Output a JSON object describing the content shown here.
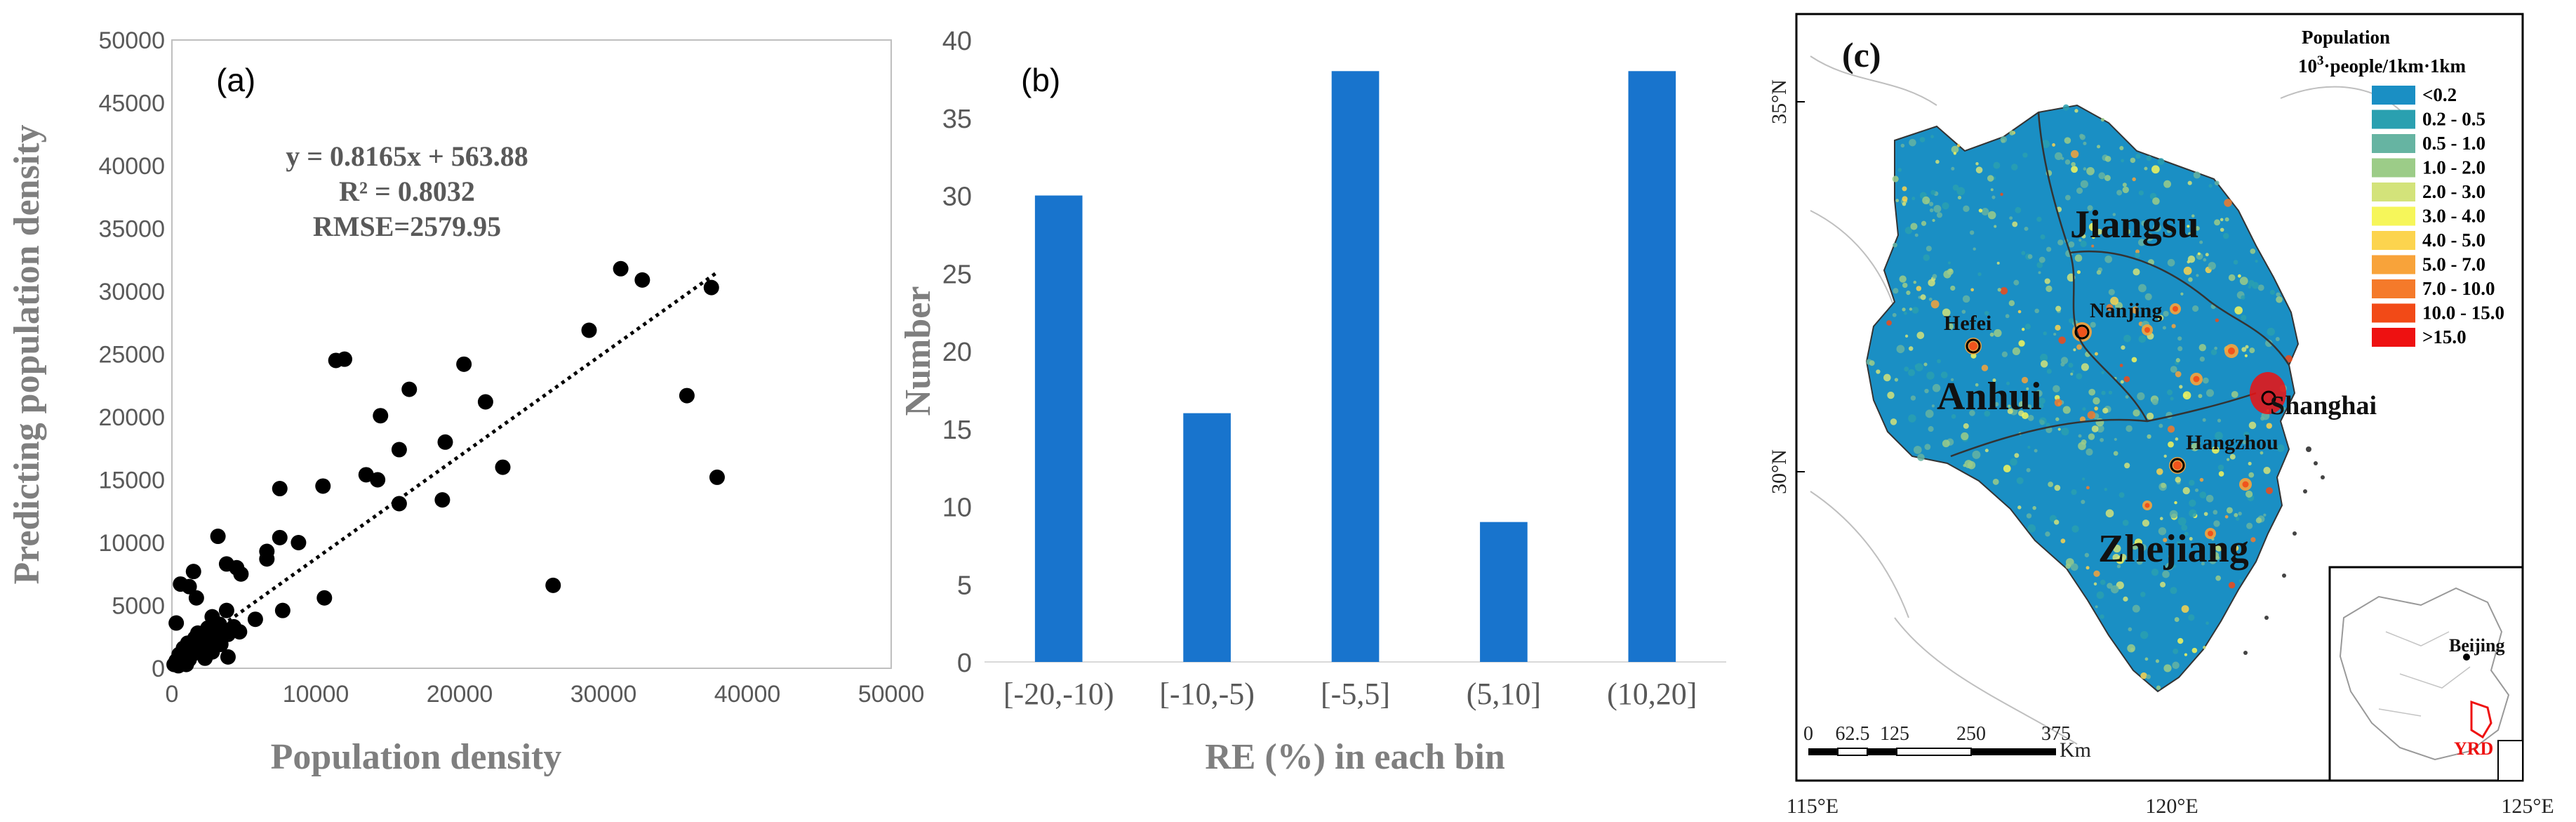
{
  "chart_data": [
    {
      "type": "scatter",
      "label": "(a)",
      "xlabel": "Population density",
      "ylabel": "Predicting population density",
      "xlim": [
        0,
        50000
      ],
      "ylim": [
        0,
        50000
      ],
      "x_ticks": [
        "0",
        "10000",
        "20000",
        "30000",
        "40000",
        "50000"
      ],
      "y_ticks": [
        "0",
        "5000",
        "10000",
        "15000",
        "20000",
        "25000",
        "30000",
        "35000",
        "40000",
        "45000",
        "50000"
      ],
      "equation": "y = 0.8165x + 563.88",
      "r2": "R² = 0.8032",
      "rmse": "RMSE=2579.95",
      "fit": {
        "slope": 0.8165,
        "intercept": 563.88,
        "x_range": [
          0,
          37800
        ]
      },
      "points": [
        [
          31200,
          31800
        ],
        [
          32700,
          30900
        ],
        [
          37500,
          30300
        ],
        [
          29000,
          26900
        ],
        [
          12000,
          24600
        ],
        [
          11400,
          24500
        ],
        [
          20300,
          24200
        ],
        [
          16500,
          22200
        ],
        [
          21800,
          21200
        ],
        [
          35800,
          21700
        ],
        [
          14500,
          20100
        ],
        [
          19000,
          18000
        ],
        [
          15800,
          17400
        ],
        [
          23000,
          16000
        ],
        [
          13500,
          15400
        ],
        [
          14300,
          15000
        ],
        [
          37900,
          15200
        ],
        [
          7500,
          14300
        ],
        [
          10500,
          14500
        ],
        [
          15800,
          13100
        ],
        [
          18800,
          13400
        ],
        [
          3200,
          10500
        ],
        [
          7500,
          10400
        ],
        [
          8800,
          10000
        ],
        [
          6600,
          9300
        ],
        [
          4500,
          8000
        ],
        [
          4800,
          7500
        ],
        [
          3800,
          8300
        ],
        [
          1500,
          7700
        ],
        [
          600,
          6700
        ],
        [
          1200,
          6500
        ],
        [
          26500,
          6600
        ],
        [
          1700,
          5600
        ],
        [
          6600,
          8700
        ],
        [
          10600,
          5600
        ],
        [
          7700,
          4600
        ],
        [
          5800,
          3900
        ],
        [
          300,
          3600
        ],
        [
          3800,
          4600
        ],
        [
          2800,
          4100
        ],
        [
          4300,
          3300
        ],
        [
          3300,
          3500
        ],
        [
          2500,
          3200
        ],
        [
          4700,
          2900
        ],
        [
          3900,
          2700
        ],
        [
          2200,
          2700
        ],
        [
          1600,
          2400
        ],
        [
          1100,
          2000
        ],
        [
          800,
          1600
        ],
        [
          500,
          1100
        ],
        [
          300,
          600
        ],
        [
          150,
          300
        ],
        [
          1900,
          1400
        ],
        [
          2600,
          1700
        ],
        [
          3100,
          2200
        ],
        [
          2000,
          1900
        ],
        [
          1400,
          1100
        ],
        [
          900,
          800
        ],
        [
          700,
          400
        ],
        [
          1200,
          700
        ],
        [
          2300,
          800
        ],
        [
          2800,
          1300
        ],
        [
          3400,
          1900
        ],
        [
          3900,
          900
        ],
        [
          1600,
          1500
        ],
        [
          450,
          200
        ],
        [
          1000,
          300
        ],
        [
          3600,
          2600
        ],
        [
          1800,
          2800
        ],
        [
          2400,
          2300
        ],
        [
          3000,
          2900
        ],
        [
          1300,
          1700
        ]
      ]
    },
    {
      "type": "bar",
      "label": "(b)",
      "categories": [
        "[-20,-10)",
        "[-10,-5)",
        "[-5,5]",
        "(5,10]",
        "(10,20]"
      ],
      "values": [
        30,
        16,
        38,
        9,
        38
      ],
      "xlabel": "RE (%) in each bin",
      "ylabel": "Number",
      "ylim": [
        0,
        40
      ],
      "y_ticks": [
        "0",
        "5",
        "10",
        "15",
        "20",
        "25",
        "30",
        "35",
        "40"
      ],
      "color": "#1874cd"
    },
    {
      "type": "map",
      "label": "(c)",
      "legend_title": "Population",
      "legend_unit_base": "10",
      "legend_unit_exp": "3",
      "legend_unit_rest": "·people/1km·1km",
      "legend": [
        {
          "label": "<0.2",
          "color": "#1a8fc4"
        },
        {
          "label": "0.2 - 0.5",
          "color": "#2aa0b0"
        },
        {
          "label": "0.5 - 1.0",
          "color": "#66b4a2"
        },
        {
          "label": "1.0 - 2.0",
          "color": "#9ccc88"
        },
        {
          "label": "2.0 - 3.0",
          "color": "#d3e37a"
        },
        {
          "label": "3.0 - 4.0",
          "color": "#f6f65a"
        },
        {
          "label": "4.0 - 5.0",
          "color": "#fcd44e"
        },
        {
          "label": "5.0 - 7.0",
          "color": "#f8a33a"
        },
        {
          "label": "7.0 - 10.0",
          "color": "#f57a2a"
        },
        {
          "label": "10.0 - 15.0",
          "color": "#f24a17"
        },
        {
          "label": ">15.0",
          "color": "#ee1111"
        }
      ],
      "provinces": [
        "Jiangsu",
        "Anhui",
        "Zhejiang",
        "Shanghai"
      ],
      "cities": [
        "Nanjing",
        "Hefei",
        "Hangzhou"
      ],
      "lat_ticks": [
        "35°N",
        "30°N"
      ],
      "lon_ticks": [
        "115°E",
        "120°E",
        "125°E"
      ],
      "scale_ticks": [
        "0",
        "62.5",
        "125",
        "250",
        "375"
      ],
      "scale_unit": "Km",
      "inset_labels": [
        "Beijing",
        "YRD"
      ]
    }
  ]
}
